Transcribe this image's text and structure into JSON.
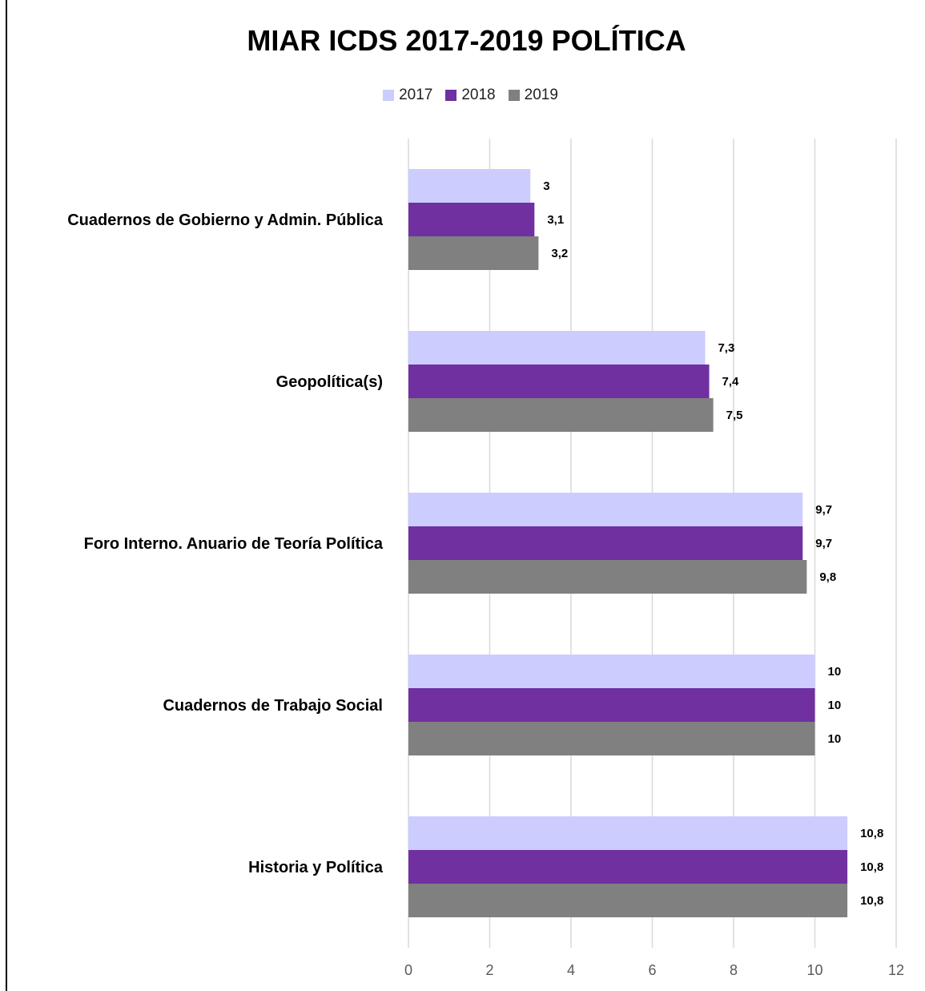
{
  "chart_data": {
    "type": "bar",
    "orientation": "horizontal",
    "title": "MIAR ICDS 2017-2019 POLÍTICA",
    "categories": [
      "Cuadernos de Gobierno y Admin. Pública",
      "Geopolítica(s)",
      "Foro Interno. Anuario de Teoría Política",
      "Cuadernos de Trabajo Social",
      "Historia y Política"
    ],
    "series": [
      {
        "name": "2017",
        "color": "#ccccff",
        "values": [
          3,
          7.3,
          9.7,
          10,
          10.8
        ],
        "labels": [
          "3",
          "7,3",
          "9,7",
          "10",
          "10,8"
        ]
      },
      {
        "name": "2018",
        "color": "#7030a0",
        "values": [
          3.1,
          7.4,
          9.7,
          10,
          10.8
        ],
        "labels": [
          "3,1",
          "7,4",
          "9,7",
          "10",
          "10,8"
        ]
      },
      {
        "name": "2019",
        "color": "#808080",
        "values": [
          3.2,
          7.5,
          9.8,
          10,
          10.8
        ],
        "labels": [
          "3,2",
          "7,5",
          "9,8",
          "10",
          "10,8"
        ]
      }
    ],
    "xlim": [
      0,
      12
    ],
    "xticks": [
      "0",
      "2",
      "4",
      "6",
      "8",
      "10",
      "12"
    ],
    "grid": true,
    "legend_position": "top"
  }
}
